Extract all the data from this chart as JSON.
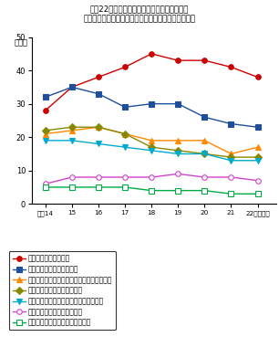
{
  "title_line1": "平成22年では、「必要ない・興味がない」が",
  "title_line2": "最も高い要因となっているが、減少傾向になっている",
  "ylabel": "（％）",
  "x_values": [
    14,
    15,
    16,
    17,
    18,
    19,
    20,
    21,
    22
  ],
  "x_labels": [
    "平成14",
    "15",
    "16",
    "17",
    "18",
    "19",
    "20",
    "21",
    "22（年末）"
  ],
  "ylim": [
    0,
    50
  ],
  "yticks": [
    0,
    10,
    20,
    30,
    40,
    50
  ],
  "series": [
    {
      "label": "必要ない・興味がない",
      "values": [
        28,
        35,
        38,
        41,
        45,
        43,
        43,
        41,
        38
      ],
      "color": "#cc0000",
      "marker": "o",
      "marker_filled": true
    },
    {
      "label": "実際に商品を見て買いたい",
      "values": [
        32,
        35,
        33,
        29,
        30,
        30,
        26,
        24,
        23
      ],
      "color": "#1f4e9b",
      "marker": "s",
      "marker_filled": true
    },
    {
      "label": "クレジット番号情報を流すことに不安がある",
      "values": [
        21,
        22,
        23,
        21,
        19,
        19,
        19,
        15,
        17
      ],
      "color": "#ff8800",
      "marker": "^",
      "marker_filled": true
    },
    {
      "label": "個人情報の保護に不安がある",
      "values": [
        22,
        23,
        23,
        21,
        17,
        16,
        15,
        14,
        14
      ],
      "color": "#888800",
      "marker": "D",
      "marker_filled": true
    },
    {
      "label": "商品の受取りや返品などで信頼できない",
      "values": [
        19,
        19,
        18,
        17,
        16,
        15,
        15,
        13,
        13
      ],
      "color": "#00aacc",
      "marker": "v",
      "marker_filled": true
    },
    {
      "label": "購入までの手段が煩雑である",
      "values": [
        6,
        8,
        8,
        8,
        8,
        9,
        8,
        8,
        7
      ],
      "color": "#cc44cc",
      "marker": "o",
      "marker_filled": false
    },
    {
      "label": "購入したい商品・サービスがない",
      "values": [
        5,
        5,
        5,
        5,
        4,
        4,
        4,
        3,
        3
      ],
      "color": "#00aa44",
      "marker": "s",
      "marker_filled": false
    }
  ]
}
